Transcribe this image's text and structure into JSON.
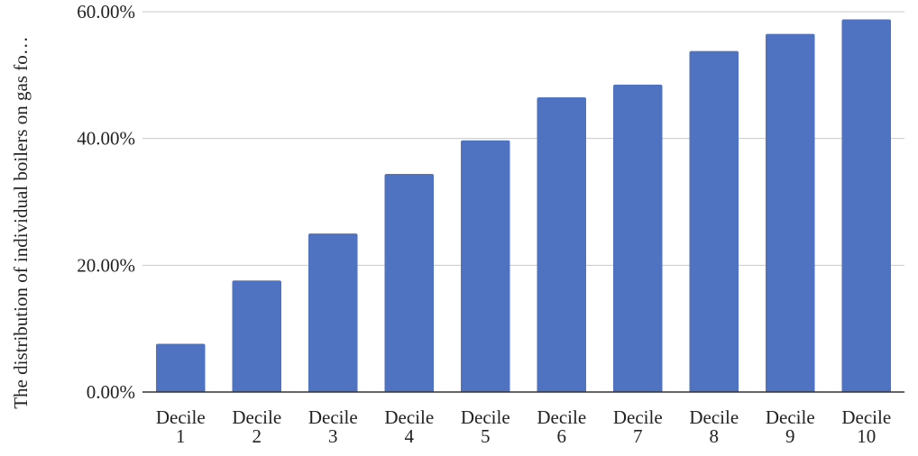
{
  "chart_data": {
    "type": "bar",
    "title": "",
    "xlabel": "",
    "ylabel": "The distribution of individual boilers on gas fo…",
    "categories": [
      [
        "Decile",
        "1"
      ],
      [
        "Decile",
        "2"
      ],
      [
        "Decile",
        "3"
      ],
      [
        "Decile",
        "4"
      ],
      [
        "Decile",
        "5"
      ],
      [
        "Decile",
        "6"
      ],
      [
        "Decile",
        "7"
      ],
      [
        "Decile",
        "8"
      ],
      [
        "Decile",
        "9"
      ],
      [
        "Decile",
        "10"
      ]
    ],
    "values": [
      7.6,
      17.6,
      25.0,
      34.4,
      39.7,
      46.5,
      48.5,
      53.8,
      56.5,
      58.8
    ],
    "ylim": [
      0,
      60
    ],
    "yticks": [
      0,
      20,
      40,
      60
    ],
    "ytick_labels": [
      "0.00%",
      "20.00%",
      "40.00%",
      "60.00%"
    ],
    "grid": true,
    "bar_color": "#5073c1",
    "grid_color": "#c8c8c8",
    "axis_color": "#333333"
  }
}
